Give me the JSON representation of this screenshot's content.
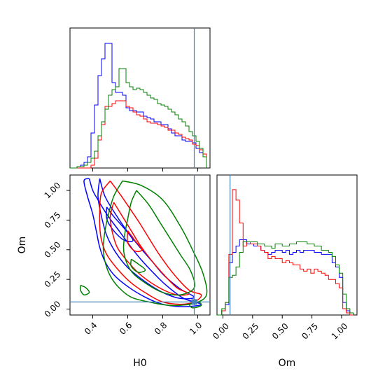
{
  "chart_data": {
    "type": "corner",
    "params": [
      "H0",
      "Om"
    ],
    "xlabel_h0": "H0",
    "xlabel_om": "Om",
    "ylabel_om": "Om",
    "truth": {
      "H0": 0.98,
      "Om": 0.06
    },
    "colors": [
      "#0000ff",
      "#ff0000",
      "#008000"
    ],
    "h0_ticks": [
      "0.4",
      "0.6",
      "0.8",
      "1.0"
    ],
    "om_ticks": [
      "0.00",
      "0.25",
      "0.50",
      "0.75",
      "1.00"
    ],
    "h0_range": [
      0.27,
      1.07
    ],
    "om_range": [
      -0.05,
      1.13
    ],
    "hist_h0": {
      "edges": [
        0.27,
        0.31,
        0.33,
        0.35,
        0.37,
        0.39,
        0.41,
        0.43,
        0.45,
        0.47,
        0.49,
        0.51,
        0.53,
        0.55,
        0.57,
        0.59,
        0.61,
        0.63,
        0.65,
        0.67,
        0.69,
        0.71,
        0.73,
        0.75,
        0.77,
        0.79,
        0.81,
        0.83,
        0.85,
        0.87,
        0.89,
        0.91,
        0.93,
        0.95,
        0.97,
        0.99,
        1.01,
        1.03,
        1.05
      ],
      "series": [
        {
          "values": [
            0.0,
            0.01,
            0.02,
            0.04,
            0.08,
            0.25,
            0.45,
            0.66,
            0.78,
            0.89,
            0.89,
            0.61,
            0.54,
            0.54,
            0.52,
            0.43,
            0.41,
            0.41,
            0.4,
            0.4,
            0.37,
            0.36,
            0.35,
            0.33,
            0.33,
            0.31,
            0.31,
            0.28,
            0.25,
            0.23,
            0.23,
            0.2,
            0.19,
            0.19,
            0.18,
            0.14,
            0.11,
            0.1
          ]
        },
        {
          "values": [
            0.0,
            0.0,
            0.0,
            0.0,
            0.0,
            0.02,
            0.07,
            0.2,
            0.31,
            0.44,
            0.44,
            0.46,
            0.48,
            0.48,
            0.48,
            0.44,
            0.43,
            0.4,
            0.38,
            0.37,
            0.35,
            0.33,
            0.32,
            0.32,
            0.31,
            0.3,
            0.29,
            0.27,
            0.27,
            0.25,
            0.24,
            0.22,
            0.21,
            0.2,
            0.17,
            0.16,
            0.13,
            0.1
          ]
        },
        {
          "values": [
            0.0,
            0.01,
            0.01,
            0.02,
            0.04,
            0.07,
            0.12,
            0.23,
            0.33,
            0.42,
            0.52,
            0.56,
            0.58,
            0.71,
            0.71,
            0.61,
            0.58,
            0.56,
            0.57,
            0.56,
            0.54,
            0.52,
            0.5,
            0.49,
            0.46,
            0.45,
            0.44,
            0.42,
            0.4,
            0.38,
            0.35,
            0.33,
            0.3,
            0.26,
            0.23,
            0.19,
            0.14,
            0.08
          ]
        }
      ]
    },
    "hist_om": {
      "edges": [
        -0.05,
        -0.01,
        0.02,
        0.05,
        0.08,
        0.11,
        0.14,
        0.17,
        0.2,
        0.23,
        0.26,
        0.29,
        0.32,
        0.35,
        0.38,
        0.41,
        0.44,
        0.47,
        0.5,
        0.53,
        0.56,
        0.59,
        0.62,
        0.65,
        0.68,
        0.71,
        0.74,
        0.77,
        0.8,
        0.83,
        0.86,
        0.89,
        0.92,
        0.95,
        0.98,
        1.01,
        1.04,
        1.07,
        1.1
      ],
      "series": [
        {
          "values": [
            0.0,
            0.02,
            0.05,
            0.25,
            0.3,
            0.33,
            0.36,
            0.36,
            0.34,
            0.34,
            0.33,
            0.33,
            0.31,
            0.3,
            0.29,
            0.3,
            0.31,
            0.31,
            0.3,
            0.31,
            0.29,
            0.3,
            0.31,
            0.3,
            0.31,
            0.31,
            0.31,
            0.3,
            0.3,
            0.29,
            0.29,
            0.29,
            0.25,
            0.23,
            0.18,
            0.06,
            0.02,
            0.01
          ]
        },
        {
          "values": [
            0.0,
            0.02,
            0.06,
            0.29,
            0.6,
            0.55,
            0.44,
            0.33,
            0.35,
            0.34,
            0.34,
            0.33,
            0.31,
            0.3,
            0.27,
            0.28,
            0.27,
            0.27,
            0.25,
            0.26,
            0.25,
            0.24,
            0.24,
            0.22,
            0.21,
            0.22,
            0.2,
            0.22,
            0.21,
            0.2,
            0.19,
            0.17,
            0.17,
            0.15,
            0.13,
            0.03,
            0.01,
            0.0
          ]
        },
        {
          "values": [
            0.0,
            0.03,
            0.06,
            0.18,
            0.19,
            0.23,
            0.3,
            0.35,
            0.35,
            0.35,
            0.35,
            0.34,
            0.34,
            0.33,
            0.33,
            0.32,
            0.34,
            0.34,
            0.33,
            0.33,
            0.34,
            0.34,
            0.35,
            0.35,
            0.35,
            0.34,
            0.34,
            0.33,
            0.33,
            0.31,
            0.31,
            0.3,
            0.28,
            0.24,
            0.2,
            0.1,
            0.03,
            0.01
          ]
        }
      ]
    },
    "contours": [
      {
        "series": 0,
        "points": [
          [
            0.38,
            1.1
          ],
          [
            0.4,
            1.0
          ],
          [
            0.43,
            0.92
          ],
          [
            0.48,
            0.8
          ],
          [
            0.55,
            0.66
          ],
          [
            0.62,
            0.52
          ],
          [
            0.68,
            0.41
          ],
          [
            0.75,
            0.3
          ],
          [
            0.82,
            0.2
          ],
          [
            0.92,
            0.09
          ],
          [
            1.02,
            0.04
          ],
          [
            0.92,
            0.02
          ],
          [
            0.8,
            0.04
          ],
          [
            0.7,
            0.1
          ],
          [
            0.6,
            0.19
          ],
          [
            0.52,
            0.29
          ],
          [
            0.47,
            0.4
          ],
          [
            0.44,
            0.52
          ],
          [
            0.42,
            0.66
          ],
          [
            0.4,
            0.8
          ],
          [
            0.37,
            0.95
          ],
          [
            0.35,
            1.08
          ],
          [
            0.38,
            1.1
          ]
        ]
      },
      {
        "series": 0,
        "points": [
          [
            0.44,
            1.1
          ],
          [
            0.47,
            0.95
          ],
          [
            0.53,
            0.8
          ],
          [
            0.6,
            0.65
          ],
          [
            0.67,
            0.52
          ],
          [
            0.74,
            0.4
          ],
          [
            0.81,
            0.28
          ],
          [
            0.9,
            0.17
          ],
          [
            0.98,
            0.1
          ],
          [
            0.9,
            0.09
          ],
          [
            0.8,
            0.14
          ],
          [
            0.7,
            0.23
          ],
          [
            0.6,
            0.35
          ],
          [
            0.53,
            0.48
          ],
          [
            0.48,
            0.62
          ],
          [
            0.45,
            0.78
          ],
          [
            0.43,
            0.95
          ],
          [
            0.44,
            1.1
          ]
        ]
      },
      {
        "series": 0,
        "points": [
          [
            0.48,
            0.86
          ],
          [
            0.52,
            0.78
          ],
          [
            0.58,
            0.68
          ],
          [
            0.63,
            0.58
          ],
          [
            0.58,
            0.58
          ],
          [
            0.52,
            0.66
          ],
          [
            0.48,
            0.76
          ],
          [
            0.48,
            0.86
          ]
        ]
      },
      {
        "series": 1,
        "points": [
          [
            0.5,
            1.08
          ],
          [
            0.56,
            0.96
          ],
          [
            0.62,
            0.83
          ],
          [
            0.67,
            0.72
          ],
          [
            0.72,
            0.6
          ],
          [
            0.78,
            0.46
          ],
          [
            0.86,
            0.3
          ],
          [
            0.95,
            0.16
          ],
          [
            1.02,
            0.12
          ],
          [
            0.98,
            0.06
          ],
          [
            0.9,
            0.04
          ],
          [
            0.8,
            0.06
          ],
          [
            0.72,
            0.12
          ],
          [
            0.62,
            0.22
          ],
          [
            0.54,
            0.34
          ],
          [
            0.48,
            0.46
          ],
          [
            0.45,
            0.58
          ],
          [
            0.44,
            0.7
          ],
          [
            0.44,
            0.84
          ],
          [
            0.45,
            0.98
          ],
          [
            0.5,
            1.08
          ]
        ]
      },
      {
        "series": 1,
        "points": [
          [
            0.52,
            0.9
          ],
          [
            0.57,
            0.78
          ],
          [
            0.62,
            0.66
          ],
          [
            0.67,
            0.54
          ],
          [
            0.73,
            0.42
          ],
          [
            0.8,
            0.3
          ],
          [
            0.88,
            0.18
          ],
          [
            0.95,
            0.13
          ],
          [
            0.88,
            0.12
          ],
          [
            0.78,
            0.18
          ],
          [
            0.68,
            0.28
          ],
          [
            0.6,
            0.4
          ],
          [
            0.54,
            0.52
          ],
          [
            0.51,
            0.66
          ],
          [
            0.5,
            0.78
          ],
          [
            0.52,
            0.9
          ]
        ]
      },
      {
        "series": 1,
        "points": [
          [
            0.6,
            0.66
          ],
          [
            0.64,
            0.58
          ],
          [
            0.68,
            0.5
          ],
          [
            0.64,
            0.49
          ],
          [
            0.6,
            0.56
          ],
          [
            0.6,
            0.66
          ]
        ]
      },
      {
        "series": 2,
        "points": [
          [
            0.57,
            1.08
          ],
          [
            0.68,
            1.04
          ],
          [
            0.8,
            0.92
          ],
          [
            0.9,
            0.7
          ],
          [
            0.97,
            0.5
          ],
          [
            1.03,
            0.3
          ],
          [
            1.05,
            0.12
          ],
          [
            0.98,
            0.05
          ],
          [
            0.85,
            0.03
          ],
          [
            0.72,
            0.06
          ],
          [
            0.62,
            0.1
          ],
          [
            0.55,
            0.18
          ],
          [
            0.5,
            0.28
          ],
          [
            0.47,
            0.4
          ],
          [
            0.46,
            0.52
          ],
          [
            0.47,
            0.66
          ],
          [
            0.49,
            0.8
          ],
          [
            0.52,
            0.95
          ],
          [
            0.57,
            1.08
          ]
        ]
      },
      {
        "series": 2,
        "points": [
          [
            0.65,
            1.0
          ],
          [
            0.72,
            0.88
          ],
          [
            0.78,
            0.74
          ],
          [
            0.84,
            0.6
          ],
          [
            0.9,
            0.46
          ],
          [
            0.96,
            0.32
          ],
          [
            0.98,
            0.18
          ],
          [
            0.9,
            0.12
          ],
          [
            0.8,
            0.14
          ],
          [
            0.7,
            0.22
          ],
          [
            0.62,
            0.32
          ],
          [
            0.58,
            0.46
          ],
          [
            0.58,
            0.6
          ],
          [
            0.6,
            0.76
          ],
          [
            0.62,
            0.9
          ],
          [
            0.65,
            1.0
          ]
        ]
      },
      {
        "series": 2,
        "points": [
          [
            0.62,
            0.42
          ],
          [
            0.66,
            0.38
          ],
          [
            0.7,
            0.33
          ],
          [
            0.66,
            0.31
          ],
          [
            0.62,
            0.36
          ],
          [
            0.62,
            0.42
          ]
        ]
      },
      {
        "series": 2,
        "points": [
          [
            0.33,
            0.2
          ],
          [
            0.36,
            0.18
          ],
          [
            0.38,
            0.14
          ],
          [
            0.35,
            0.12
          ],
          [
            0.33,
            0.16
          ],
          [
            0.33,
            0.2
          ]
        ]
      },
      {
        "series": 2,
        "points": [
          [
            0.95,
            0.04
          ],
          [
            1.0,
            0.06
          ],
          [
            1.02,
            0.03
          ],
          [
            0.97,
            0.01
          ],
          [
            0.95,
            0.04
          ]
        ]
      }
    ]
  }
}
